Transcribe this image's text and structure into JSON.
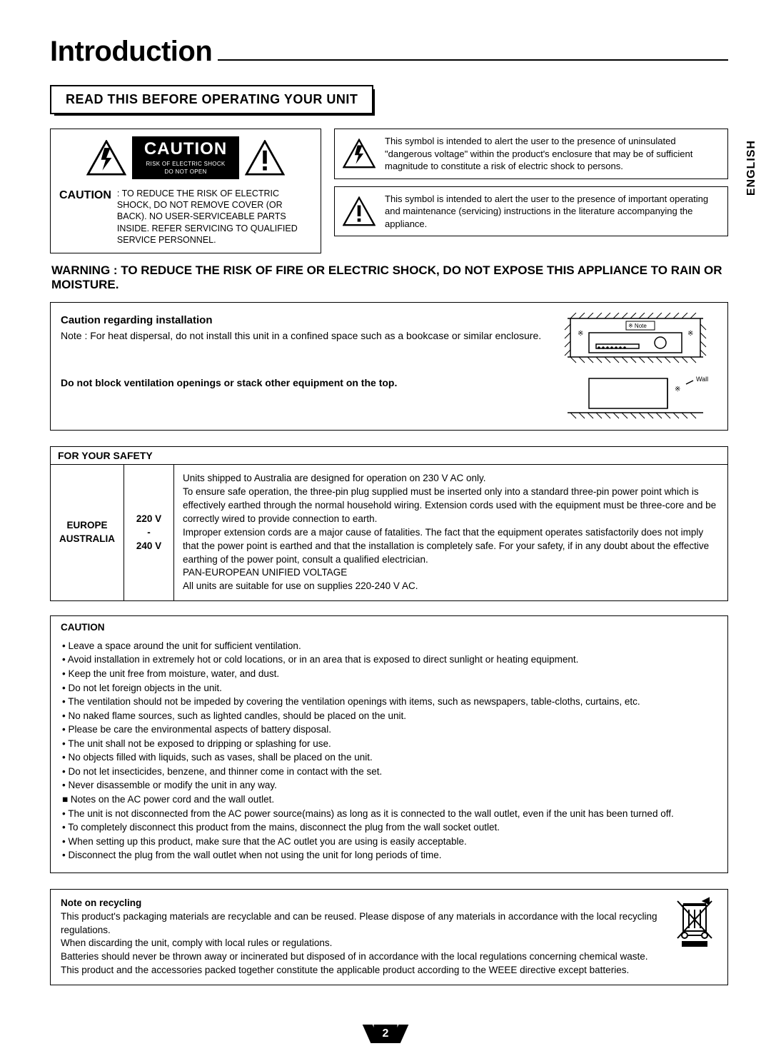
{
  "page": {
    "title": "Introduction",
    "language": "ENGLISH",
    "number": "2"
  },
  "section": {
    "heading": "READ THIS BEFORE OPERATING YOUR UNIT"
  },
  "plate": {
    "big": "CAUTION",
    "line1": "RISK OF ELECTRIC SHOCK",
    "line2": "DO NOT OPEN"
  },
  "cautionBlock": {
    "label": "CAUTION",
    "body": ": TO REDUCE THE RISK OF  ELECTRIC SHOCK, DO NOT REMOVE COVER (OR BACK). NO USER-SERVICEABLE PARTS INSIDE. REFER SERVICING TO QUALIFIED SERVICE PERSONNEL."
  },
  "symbols": {
    "bolt": "This symbol is intended to alert the user to the presence of uninsulated \"dangerous voltage\" within the product's enclosure that may be of sufficient magnitude to constitute a risk of electric shock to persons.",
    "excl": "This symbol is intended to alert the user to the presence of important operating and maintenance (servicing) instructions in the literature accompanying the appliance."
  },
  "warning": {
    "label": "WARNING",
    "text": " : TO REDUCE THE RISK OF FIRE OR ELECTRIC SHOCK, DO NOT EXPOSE THIS APPLIANCE TO RAIN OR MOISTURE."
  },
  "install": {
    "heading": "Caution regarding installation",
    "note": "Note : For heat dispersal, do not install this unit in a confined space such as a bookcase or similar enclosure.",
    "bold": "Do not block ventilation openings or stack other equipment on the top.",
    "diagram": {
      "noteLabel": "※ Note",
      "wallLabel": "Wall",
      "marks": "※"
    }
  },
  "safety": {
    "heading": "FOR YOUR SAFETY",
    "region": "EUROPE\nAUSTRALIA",
    "volt": "220 V\n-\n240 V",
    "body": "Units shipped to Australia are designed for operation on 230 V AC only.\nTo ensure safe operation, the three-pin plug supplied must be inserted only into a standard three-pin power point which is effectively earthed through the normal household wiring. Extension cords used with the equipment must be three-core and be correctly wired to provide connection to earth.\nImproper extension cords are a major cause of fatalities. The fact that the equipment operates satisfactorily does not imply that the power point is earthed and that the installation is completely safe. For your safety, if in any doubt about the effective earthing of the power point, consult a qualified electrician.\nPAN-EUROPEAN UNIFIED VOLTAGE\nAll units are suitable for use on supplies 220-240 V AC."
  },
  "cautionList": {
    "heading": "CAUTION",
    "items": [
      "• Leave a space around the unit for sufficient ventilation.",
      "• Avoid installation in extremely hot or cold locations, or in an area that is exposed to direct sunlight or  heating equipment.",
      "• Keep the unit free from moisture, water, and dust.",
      "• Do not let foreign objects in the unit.",
      "• The ventilation should not be impeded by covering the ventilation openings with items, such as newspapers, table-cloths, curtains, etc.",
      "• No naked flame sources, such as lighted candles, should be placed on the unit.",
      "• Please be care the environmental aspects of battery disposal.",
      "• The unit shall not be exposed to dripping or splashing for use.",
      "• No objects filled with liquids, such as vases, shall be placed on the unit.",
      "• Do not let insecticides, benzene, and thinner come in contact with the set.",
      "• Never disassemble or modify the unit in any way.",
      "■ Notes on the AC power cord and the wall outlet.",
      "• The unit is not disconnected from the AC power source(mains) as long as it is connected to the wall outlet, even if the unit has been turned off.",
      "• To completely disconnect this product from the mains, disconnect the plug from the wall socket outlet.",
      "• When setting up this product, make sure that the AC outlet you are using is easily acceptable.",
      "• Disconnect the plug from the wall outlet when not using the unit for long periods of time."
    ]
  },
  "recycle": {
    "heading": "Note on recycling",
    "body": "This product's packaging materials are recyclable and can be reused. Please dispose of any materials in accordance with the local recycling regulations.\nWhen discarding the unit, comply with local rules or regulations.\nBatteries should never be thrown away or incinerated but disposed of in accordance with the local regulations concerning chemical waste.\nThis product and the accessories packed together constitute the applicable product according to the WEEE directive except batteries."
  }
}
